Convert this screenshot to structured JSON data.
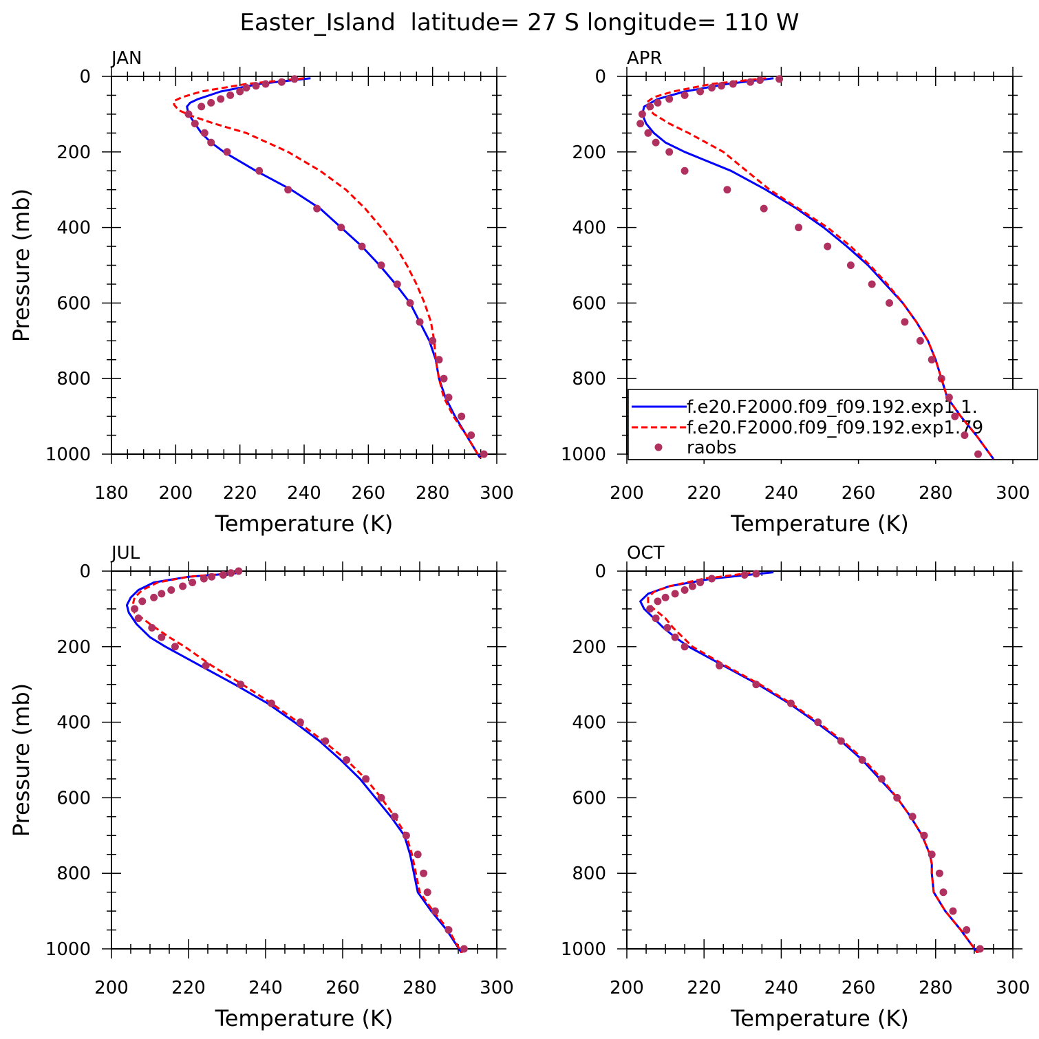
{
  "title": "Easter_Island  latitude= 27 S longitude= 110 W",
  "colors": {
    "series_1": "#0000ff",
    "series_2": "#ff0000",
    "raobs": "#b03060"
  },
  "legend": {
    "placement": "lower-right of APR panel",
    "entries": [
      {
        "label": "f.e20.F2000.f09_f09.192.exp1.1.",
        "style": "solid"
      },
      {
        "label": "f.e20.F2000.f09_f09.192.exp1.79",
        "style": "dashed"
      },
      {
        "label": "raobs",
        "style": "dots"
      }
    ]
  },
  "chart_data": [
    {
      "type": "line",
      "panel_label": "JAN",
      "xlabel": "Temperature (K)",
      "ylabel": "Pressure (mb)",
      "xlim": [
        180,
        300
      ],
      "xticks": [
        180,
        200,
        220,
        240,
        260,
        280,
        300
      ],
      "ylim": [
        1000,
        0
      ],
      "yticks": [
        0,
        200,
        400,
        600,
        800,
        1000
      ],
      "series": [
        {
          "p": [
            5,
            20,
            40,
            60,
            70,
            80,
            100,
            125,
            150,
            175,
            200,
            250,
            300,
            350,
            400,
            450,
            500,
            550,
            600,
            650,
            700,
            750,
            800,
            850,
            900,
            950,
            1013
          ],
          "t": [
            242,
            226,
            214,
            207,
            204.5,
            203.5,
            204,
            206,
            208,
            211,
            215,
            225,
            236,
            245,
            251.5,
            258,
            263.5,
            268.5,
            273,
            276,
            279,
            281,
            282,
            284,
            287,
            290.5,
            295
          ]
        },
        {
          "p": [
            5,
            20,
            40,
            55,
            65,
            75,
            90,
            105,
            125,
            150,
            200,
            250,
            300,
            350,
            400,
            450,
            500,
            550,
            600,
            650,
            700,
            750,
            800,
            850,
            900,
            950,
            1013
          ],
          "t": [
            240,
            222,
            208,
            202,
            199.5,
            199.5,
            201,
            205,
            212,
            222,
            235,
            245,
            253,
            259,
            264,
            268.5,
            272,
            275,
            277.5,
            279.5,
            280.5,
            281,
            282,
            283.5,
            286.5,
            290.5,
            295
          ]
        }
      ],
      "raobs": {
        "p": [
          7,
          15,
          20,
          25,
          30,
          40,
          50,
          60,
          70,
          80,
          100,
          125,
          150,
          175,
          200,
          250,
          300,
          350,
          400,
          450,
          500,
          550,
          600,
          650,
          700,
          750,
          800,
          850,
          900,
          950,
          1000
        ],
        "t": [
          237,
          233,
          228,
          225,
          222,
          220,
          217,
          214,
          211,
          208,
          204,
          206,
          209,
          211,
          216,
          226,
          235,
          244,
          251.5,
          258,
          264,
          269,
          273,
          276,
          280,
          282,
          283.5,
          285,
          289,
          292,
          296
        ]
      }
    },
    {
      "type": "line",
      "panel_label": "APR",
      "xlabel": "Temperature (K)",
      "ylabel": "",
      "xlim": [
        200,
        300
      ],
      "xticks": [
        200,
        220,
        240,
        260,
        280,
        300
      ],
      "ylim": [
        1000,
        0
      ],
      "yticks": [
        0,
        200,
        400,
        600,
        800,
        1000
      ],
      "series": [
        {
          "p": [
            5,
            20,
            40,
            60,
            80,
            100,
            125,
            150,
            175,
            200,
            250,
            300,
            350,
            400,
            450,
            500,
            550,
            600,
            650,
            700,
            750,
            800,
            850,
            900,
            950,
            1013
          ],
          "t": [
            238,
            226,
            215,
            208,
            204.5,
            204,
            205,
            207,
            210,
            215,
            227,
            236,
            244,
            251,
            257,
            262.5,
            267,
            271.5,
            275,
            278,
            280,
            281.5,
            283,
            286.5,
            290.5,
            295
          ]
        },
        {
          "p": [
            5,
            20,
            40,
            55,
            70,
            85,
            100,
            125,
            150,
            200,
            250,
            300,
            350,
            400,
            450,
            500,
            550,
            600,
            650,
            700,
            750,
            800,
            850,
            900,
            950,
            1013
          ],
          "t": [
            236,
            222,
            212,
            207,
            205,
            205.5,
            207,
            211,
            216,
            225,
            231,
            237,
            244.5,
            252,
            258,
            263,
            267.5,
            271.5,
            275,
            278,
            280,
            281.5,
            283,
            286.5,
            290.5,
            295
          ]
        }
      ],
      "raobs": {
        "p": [
          7,
          10,
          15,
          20,
          25,
          30,
          40,
          50,
          60,
          70,
          80,
          100,
          125,
          150,
          175,
          200,
          250,
          300,
          350,
          400,
          450,
          500,
          550,
          600,
          650,
          700,
          750,
          800,
          850,
          900,
          950,
          1000
        ],
        "t": [
          239.5,
          234.5,
          232,
          227.5,
          224.5,
          222,
          219,
          215,
          211,
          208,
          206,
          204,
          203.5,
          205.5,
          207.5,
          211,
          215,
          226,
          235.5,
          244.5,
          252,
          258,
          263.5,
          268,
          272,
          276,
          279,
          281.5,
          283.5,
          285,
          287.5,
          291
        ]
      }
    },
    {
      "type": "line",
      "panel_label": "JUL",
      "xlabel": "Temperature (K)",
      "ylabel": "Pressure (mb)",
      "xlim": [
        200,
        300
      ],
      "xticks": [
        200,
        220,
        240,
        260,
        280,
        300
      ],
      "ylim": [
        1000,
        0
      ],
      "yticks": [
        0,
        200,
        400,
        600,
        800,
        1000
      ],
      "series": [
        {
          "p": [
            5,
            15,
            30,
            50,
            70,
            90,
            110,
            140,
            175,
            200,
            250,
            300,
            350,
            400,
            450,
            500,
            550,
            600,
            650,
            700,
            750,
            800,
            850,
            900,
            950,
            1013
          ],
          "t": [
            233,
            220,
            211,
            207,
            205,
            204,
            204.5,
            206.5,
            210,
            214,
            223,
            232,
            240.5,
            247.5,
            254,
            259.5,
            264.5,
            268.5,
            272.5,
            276,
            277.5,
            278.5,
            279.5,
            283,
            287,
            291
          ]
        },
        {
          "p": [
            5,
            15,
            30,
            50,
            70,
            90,
            110,
            140,
            175,
            200,
            250,
            300,
            350,
            400,
            450,
            500,
            550,
            600,
            650,
            700,
            750,
            800,
            850,
            900,
            950,
            1013
          ],
          "t": [
            232,
            220,
            212,
            208,
            206,
            205.5,
            206,
            210,
            215,
            219,
            226,
            234,
            241.5,
            248.5,
            255,
            261,
            266,
            270,
            273.5,
            276.5,
            278,
            279,
            280,
            283.5,
            287.5,
            291
          ]
        }
      ],
      "raobs": {
        "p": [
          0,
          5,
          10,
          15,
          20,
          30,
          40,
          50,
          60,
          70,
          80,
          100,
          125,
          150,
          175,
          200,
          250,
          300,
          350,
          400,
          450,
          500,
          550,
          600,
          650,
          700,
          750,
          800,
          850,
          900,
          950,
          1000
        ],
        "t": [
          233,
          231,
          229,
          226,
          224,
          221,
          218.5,
          215.5,
          213,
          211,
          208,
          206,
          207,
          210.5,
          213,
          216.5,
          224.5,
          233.5,
          241.5,
          249,
          255.5,
          261,
          266,
          270,
          273.5,
          276.5,
          279.5,
          281,
          282,
          284,
          287.5,
          291.5
        ]
      }
    },
    {
      "type": "line",
      "panel_label": "OCT",
      "xlabel": "Temperature (K)",
      "ylabel": "",
      "xlim": [
        200,
        300
      ],
      "xticks": [
        200,
        220,
        240,
        260,
        280,
        300
      ],
      "ylim": [
        1000,
        0
      ],
      "yticks": [
        0,
        200,
        400,
        600,
        800,
        1000
      ],
      "series": [
        {
          "p": [
            3,
            20,
            40,
            60,
            80,
            100,
            125,
            150,
            175,
            200,
            250,
            300,
            350,
            400,
            450,
            500,
            550,
            600,
            650,
            700,
            750,
            775,
            800,
            850,
            900,
            950,
            1013
          ],
          "t": [
            238,
            222,
            211,
            205.5,
            203.5,
            204.5,
            207,
            209.5,
            212.5,
            216,
            225,
            234,
            242,
            249,
            255.5,
            261,
            265.5,
            270,
            273.5,
            276.5,
            278.5,
            279,
            279,
            279.5,
            282.5,
            286.5,
            291
          ]
        },
        {
          "p": [
            5,
            20,
            40,
            55,
            70,
            85,
            100,
            125,
            150,
            200,
            250,
            300,
            350,
            400,
            450,
            500,
            550,
            600,
            650,
            700,
            750,
            775,
            800,
            850,
            900,
            950,
            1013
          ],
          "t": [
            232,
            220,
            211,
            207,
            205.5,
            205.5,
            207,
            210,
            212,
            217,
            225.5,
            234.5,
            242.5,
            249.5,
            256,
            261.5,
            266,
            270,
            273.5,
            276.5,
            278.5,
            279,
            279,
            279.5,
            282.5,
            286.5,
            291
          ]
        }
      ],
      "raobs": {
        "p": [
          7,
          10,
          20,
          30,
          40,
          50,
          60,
          70,
          80,
          100,
          125,
          150,
          175,
          200,
          250,
          300,
          350,
          400,
          450,
          500,
          550,
          600,
          650,
          700,
          750,
          800,
          850,
          900,
          950,
          1000
        ],
        "t": [
          233.5,
          230.5,
          222,
          219,
          217,
          215,
          212.5,
          210,
          208,
          206,
          207.5,
          210.5,
          212.5,
          215,
          224,
          233.5,
          242.5,
          249.5,
          255.5,
          261,
          266,
          270,
          274,
          277,
          279,
          281,
          282,
          284.5,
          288,
          291.5
        ]
      }
    }
  ]
}
